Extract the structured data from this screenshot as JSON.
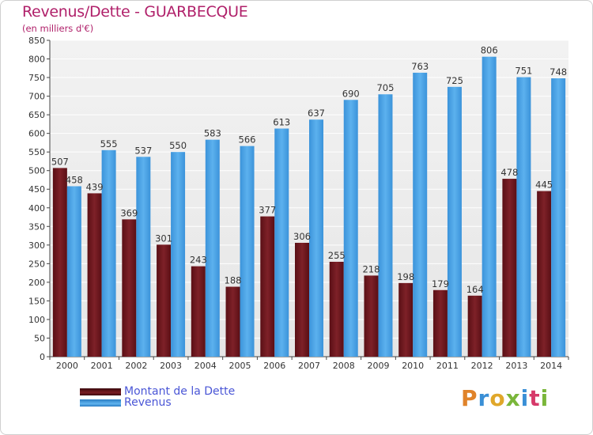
{
  "title": "Revenus/Dette - GUARBECQUE",
  "subtitle": "(en milliers d'€)",
  "legend": {
    "debt_label": "Montant de la Dette",
    "revenue_label": "Revenus"
  },
  "logo_text": "Proxiti",
  "colors": {
    "debt": "#7a1c22",
    "revenue": "#4aa3e6",
    "title": "#b0206a",
    "legend_text": "#4a56d6"
  },
  "chart_data": {
    "type": "bar",
    "title": "Revenus/Dette - GUARBECQUE",
    "subtitle": "(en milliers d'€)",
    "categories": [
      "2000",
      "2001",
      "2002",
      "2003",
      "2004",
      "2005",
      "2006",
      "2007",
      "2008",
      "2009",
      "2010",
      "2011",
      "2012",
      "2013",
      "2014"
    ],
    "series": [
      {
        "name": "Montant de la Dette",
        "values": [
          507,
          439,
          369,
          301,
          243,
          188,
          377,
          306,
          255,
          218,
          198,
          179,
          164,
          478,
          445
        ]
      },
      {
        "name": "Revenus",
        "values": [
          458,
          555,
          537,
          550,
          583,
          566,
          613,
          637,
          690,
          705,
          763,
          725,
          806,
          751,
          748
        ]
      }
    ],
    "ylim": [
      0,
      850
    ],
    "yticks": [
      0,
      50,
      100,
      150,
      200,
      250,
      300,
      350,
      400,
      450,
      500,
      550,
      600,
      650,
      700,
      750,
      800,
      850
    ],
    "grid": true,
    "legend_position": "bottom-left"
  }
}
